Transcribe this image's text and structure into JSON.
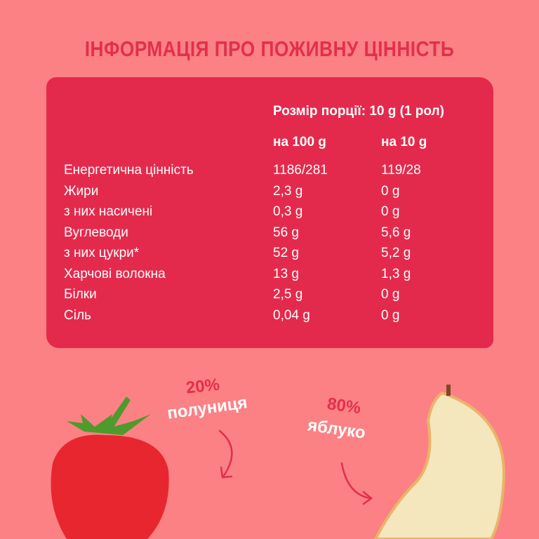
{
  "title": "ІНФОРМАЦІЯ ПРО ПОЖИВНУ ЦІННІСТЬ",
  "serving": "Розмір порції: 10 g (1 рол)",
  "headers": [
    "на 100 g",
    "на 10 g"
  ],
  "rows": [
    {
      "name": "Енергетична цінність",
      "per100": "1186/281",
      "per10": "119/28"
    },
    {
      "name": "Жири",
      "per100": "2,3 g",
      "per10": "0 g"
    },
    {
      "name": "з них насичені",
      "per100": "0,3 g",
      "per10": "0 g"
    },
    {
      "name": "Вуглеводи",
      "per100": "56 g",
      "per10": "5,6 g"
    },
    {
      "name": "з них цукри*",
      "per100": "52 g",
      "per10": "5,2 g"
    },
    {
      "name": "Харчові волокна",
      "per100": "13 g",
      "per10": "1,3 g"
    },
    {
      "name": "Білки",
      "per100": "2,5 g",
      "per10": "0 g"
    },
    {
      "name": "Сіль",
      "per100": "0,04 g",
      "per10": "0 g"
    }
  ],
  "ingredients": [
    {
      "percent": "20%",
      "name": "полуниця"
    },
    {
      "percent": "80%",
      "name": "яблуко"
    }
  ],
  "colors": {
    "background": "#fc8184",
    "panel": "#e42a4c",
    "accent": "#e32f4d"
  }
}
